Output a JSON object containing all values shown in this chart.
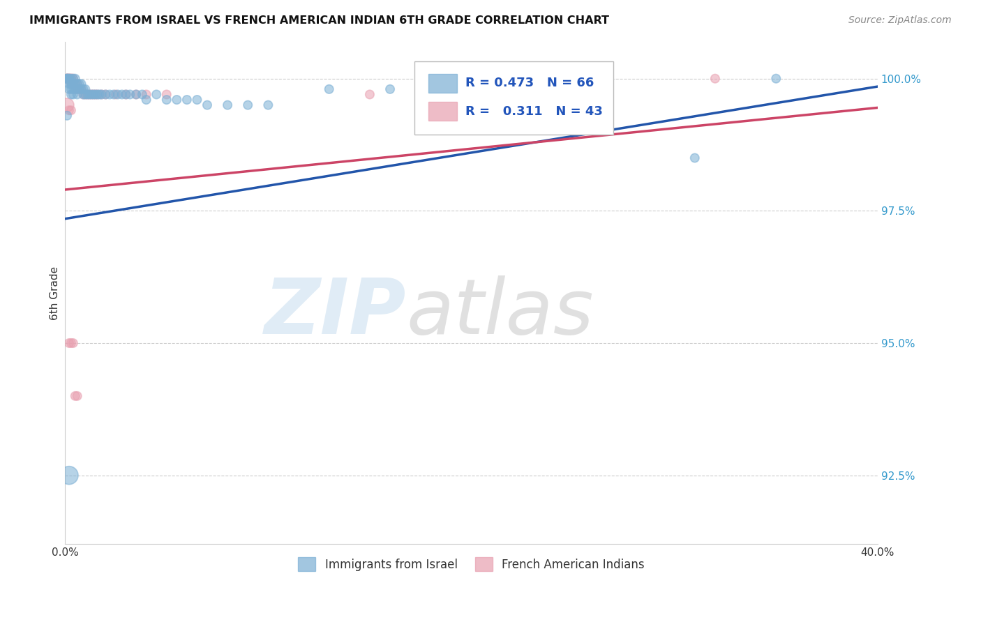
{
  "title": "IMMIGRANTS FROM ISRAEL VS FRENCH AMERICAN INDIAN 6TH GRADE CORRELATION CHART",
  "source": "Source: ZipAtlas.com",
  "ylabel": "6th Grade",
  "ytick_labels": [
    "92.5%",
    "95.0%",
    "97.5%",
    "100.0%"
  ],
  "ytick_values": [
    0.925,
    0.95,
    0.975,
    1.0
  ],
  "xlim": [
    0.0,
    0.4
  ],
  "ylim": [
    0.912,
    1.007
  ],
  "blue_color": "#7bafd4",
  "pink_color": "#e8a0b0",
  "blue_line_color": "#2255aa",
  "pink_line_color": "#cc4466",
  "legend_blue_label": "Immigrants from Israel",
  "legend_pink_label": "French American Indians",
  "R_blue": 0.473,
  "N_blue": 66,
  "R_pink": 0.311,
  "N_pink": 43,
  "blue_x": [
    0.001,
    0.001,
    0.001,
    0.002,
    0.002,
    0.002,
    0.002,
    0.003,
    0.003,
    0.003,
    0.003,
    0.003,
    0.004,
    0.004,
    0.004,
    0.004,
    0.005,
    0.005,
    0.005,
    0.006,
    0.006,
    0.006,
    0.007,
    0.007,
    0.008,
    0.008,
    0.009,
    0.009,
    0.01,
    0.01,
    0.011,
    0.012,
    0.013,
    0.014,
    0.015,
    0.016,
    0.017,
    0.018,
    0.02,
    0.022,
    0.024,
    0.026,
    0.028,
    0.03,
    0.032,
    0.035,
    0.038,
    0.04,
    0.045,
    0.05,
    0.055,
    0.06,
    0.065,
    0.07,
    0.08,
    0.09,
    0.1,
    0.13,
    0.16,
    0.2,
    0.22,
    0.25,
    0.31,
    0.35,
    0.001,
    0.002
  ],
  "blue_y": [
    1.0,
    1.0,
    1.0,
    1.0,
    1.0,
    0.999,
    0.998,
    1.0,
    0.999,
    0.999,
    0.998,
    0.997,
    1.0,
    0.999,
    0.998,
    0.997,
    1.0,
    0.999,
    0.998,
    0.999,
    0.998,
    0.997,
    0.999,
    0.998,
    0.999,
    0.998,
    0.998,
    0.997,
    0.998,
    0.997,
    0.997,
    0.997,
    0.997,
    0.997,
    0.997,
    0.997,
    0.997,
    0.997,
    0.997,
    0.997,
    0.997,
    0.997,
    0.997,
    0.997,
    0.997,
    0.997,
    0.997,
    0.996,
    0.997,
    0.996,
    0.996,
    0.996,
    0.996,
    0.995,
    0.995,
    0.995,
    0.995,
    0.998,
    0.998,
    0.997,
    0.997,
    0.997,
    0.985,
    1.0,
    0.993,
    0.925
  ],
  "blue_sizes": [
    80,
    80,
    80,
    80,
    80,
    80,
    80,
    80,
    80,
    80,
    80,
    80,
    80,
    80,
    80,
    80,
    80,
    80,
    80,
    80,
    80,
    80,
    80,
    80,
    80,
    80,
    80,
    80,
    80,
    80,
    80,
    80,
    80,
    80,
    80,
    80,
    80,
    80,
    80,
    80,
    80,
    80,
    80,
    80,
    80,
    80,
    80,
    80,
    80,
    80,
    80,
    80,
    80,
    80,
    80,
    80,
    80,
    80,
    80,
    80,
    80,
    80,
    80,
    80,
    80,
    350
  ],
  "pink_x": [
    0.001,
    0.001,
    0.001,
    0.002,
    0.002,
    0.002,
    0.003,
    0.003,
    0.003,
    0.004,
    0.004,
    0.005,
    0.005,
    0.006,
    0.006,
    0.007,
    0.008,
    0.009,
    0.01,
    0.011,
    0.012,
    0.013,
    0.014,
    0.015,
    0.016,
    0.018,
    0.02,
    0.025,
    0.03,
    0.035,
    0.04,
    0.05,
    0.002,
    0.003,
    0.004,
    0.005,
    0.006,
    0.15,
    0.2,
    0.32,
    0.001,
    0.002,
    0.003
  ],
  "pink_y": [
    1.0,
    1.0,
    1.0,
    1.0,
    1.0,
    1.0,
    1.0,
    1.0,
    0.999,
    1.0,
    0.999,
    0.999,
    0.998,
    0.999,
    0.998,
    0.998,
    0.998,
    0.997,
    0.997,
    0.997,
    0.997,
    0.997,
    0.997,
    0.997,
    0.997,
    0.997,
    0.997,
    0.997,
    0.997,
    0.997,
    0.997,
    0.997,
    0.95,
    0.95,
    0.95,
    0.94,
    0.94,
    0.997,
    1.0,
    1.0,
    0.995,
    0.994,
    0.994
  ],
  "pink_sizes": [
    80,
    80,
    80,
    80,
    80,
    80,
    80,
    80,
    80,
    80,
    80,
    80,
    80,
    80,
    80,
    80,
    80,
    80,
    80,
    80,
    80,
    80,
    80,
    80,
    80,
    80,
    80,
    80,
    80,
    80,
    80,
    80,
    80,
    80,
    80,
    80,
    80,
    80,
    80,
    80,
    200,
    80,
    80
  ],
  "blue_line_x": [
    0.0,
    0.4
  ],
  "blue_line_y": [
    0.9735,
    0.9985
  ],
  "pink_line_x": [
    0.0,
    0.4
  ],
  "pink_line_y": [
    0.979,
    0.9945
  ]
}
